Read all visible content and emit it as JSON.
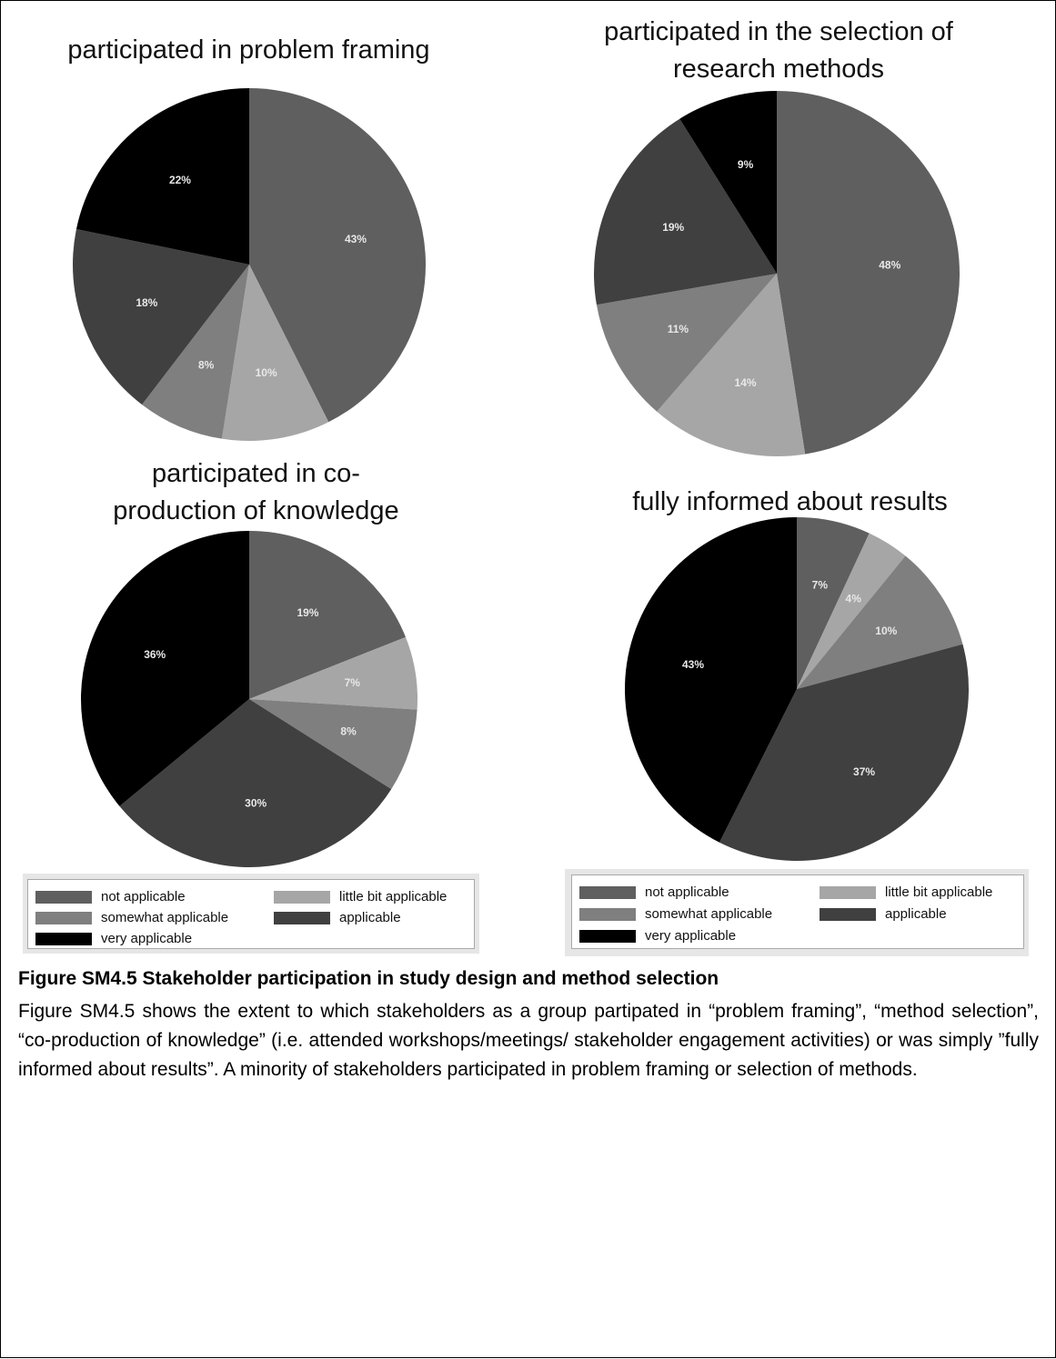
{
  "legend_items": [
    {
      "label": "not applicable",
      "color": "#5f5f5f"
    },
    {
      "label": "little bit applicable",
      "color": "#a6a6a6"
    },
    {
      "label": "somewhat applicable",
      "color": "#7f7f7f"
    },
    {
      "label": "applicable",
      "color": "#404040"
    },
    {
      "label": "very applicable",
      "color": "#000000"
    }
  ],
  "chart_data": [
    {
      "type": "pie",
      "title": "participated in problem framing",
      "categories": [
        "not applicable",
        "little bit applicable",
        "somewhat applicable",
        "applicable",
        "very applicable"
      ],
      "values": [
        43,
        10,
        8,
        18,
        22
      ],
      "labels": [
        "43%",
        "10%",
        "8%",
        "18%",
        "22%"
      ]
    },
    {
      "type": "pie",
      "title": "participated in the selection of research methods",
      "categories": [
        "not applicable",
        "little bit applicable",
        "somewhat applicable",
        "applicable",
        "very applicable"
      ],
      "values": [
        48,
        14,
        11,
        19,
        9
      ],
      "labels": [
        "48%",
        "14%",
        "11%",
        "19%",
        "9%"
      ]
    },
    {
      "type": "pie",
      "title": "participated in co-production of knowledge",
      "categories": [
        "not applicable",
        "little bit applicable",
        "somewhat applicable",
        "applicable",
        "very applicable"
      ],
      "values": [
        19,
        7,
        8,
        30,
        36
      ],
      "labels": [
        "19%",
        "7%",
        "8%",
        "30%",
        "36%"
      ]
    },
    {
      "type": "pie",
      "title": "fully informed about results",
      "categories": [
        "not applicable",
        "little bit applicable",
        "somewhat applicable",
        "applicable",
        "very applicable"
      ],
      "values": [
        7,
        4,
        10,
        37,
        43
      ],
      "labels": [
        "7%",
        "4%",
        "10%",
        "37%",
        "43%"
      ]
    }
  ],
  "titles": {
    "c1": "participated in problem framing",
    "c2_line1": "participated in the selection of",
    "c2_line2": "research methods",
    "c3_line1": "participated in co-",
    "c3_line2": "production of knowledge",
    "c4": "fully informed about results"
  },
  "caption": {
    "title": "Figure SM4.5 Stakeholder participation in study design and method selection",
    "body": "Figure SM4.5 shows the extent to which stakeholders as a group partipated in “problem framing”, “method selection”, “co-production of knowledge” (i.e. attended workshops/meetings/ stakeholder engagement activities) or was simply ”fully informed about results”.  A minority of stakeholders participated in problem framing or selection of methods."
  }
}
